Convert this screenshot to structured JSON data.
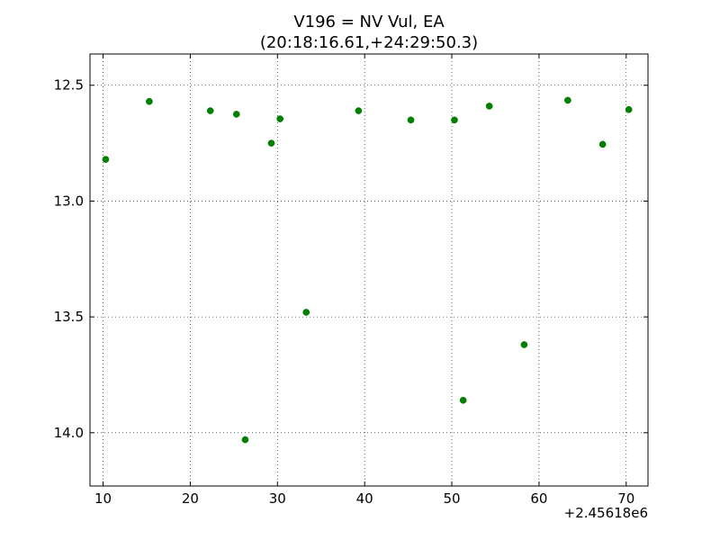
{
  "chart_data": {
    "type": "scatter",
    "title": "V196 = NV Vul, EA",
    "subtitle": "(20:18:16.61,+24:29:50.3)",
    "xlabel": "",
    "ylabel": "",
    "x_offset_label": "+2.45618e6",
    "xlim": [
      8.5,
      72.5
    ],
    "ylim": [
      14.23,
      12.365
    ],
    "y_inverted": true,
    "grid": true,
    "marker_color": "#007f00",
    "x_ticks": [
      10,
      20,
      30,
      40,
      50,
      60,
      70
    ],
    "x_tick_labels": [
      "10",
      "20",
      "30",
      "40",
      "50",
      "60",
      "70"
    ],
    "y_ticks": [
      12.5,
      13.0,
      13.5,
      14.0
    ],
    "y_tick_labels": [
      "12.5",
      "13.0",
      "13.5",
      "14.0"
    ],
    "points": [
      {
        "x": 10.3,
        "y": 12.82
      },
      {
        "x": 15.3,
        "y": 12.57
      },
      {
        "x": 22.3,
        "y": 12.61
      },
      {
        "x": 25.3,
        "y": 12.625
      },
      {
        "x": 26.3,
        "y": 14.03
      },
      {
        "x": 29.3,
        "y": 12.75
      },
      {
        "x": 30.3,
        "y": 12.645
      },
      {
        "x": 33.3,
        "y": 13.48
      },
      {
        "x": 39.3,
        "y": 12.61
      },
      {
        "x": 45.3,
        "y": 12.65
      },
      {
        "x": 50.3,
        "y": 12.65
      },
      {
        "x": 51.3,
        "y": 13.86
      },
      {
        "x": 54.3,
        "y": 12.59
      },
      {
        "x": 58.3,
        "y": 13.62
      },
      {
        "x": 63.3,
        "y": 12.565
      },
      {
        "x": 67.3,
        "y": 12.755
      },
      {
        "x": 70.3,
        "y": 12.605
      }
    ]
  }
}
